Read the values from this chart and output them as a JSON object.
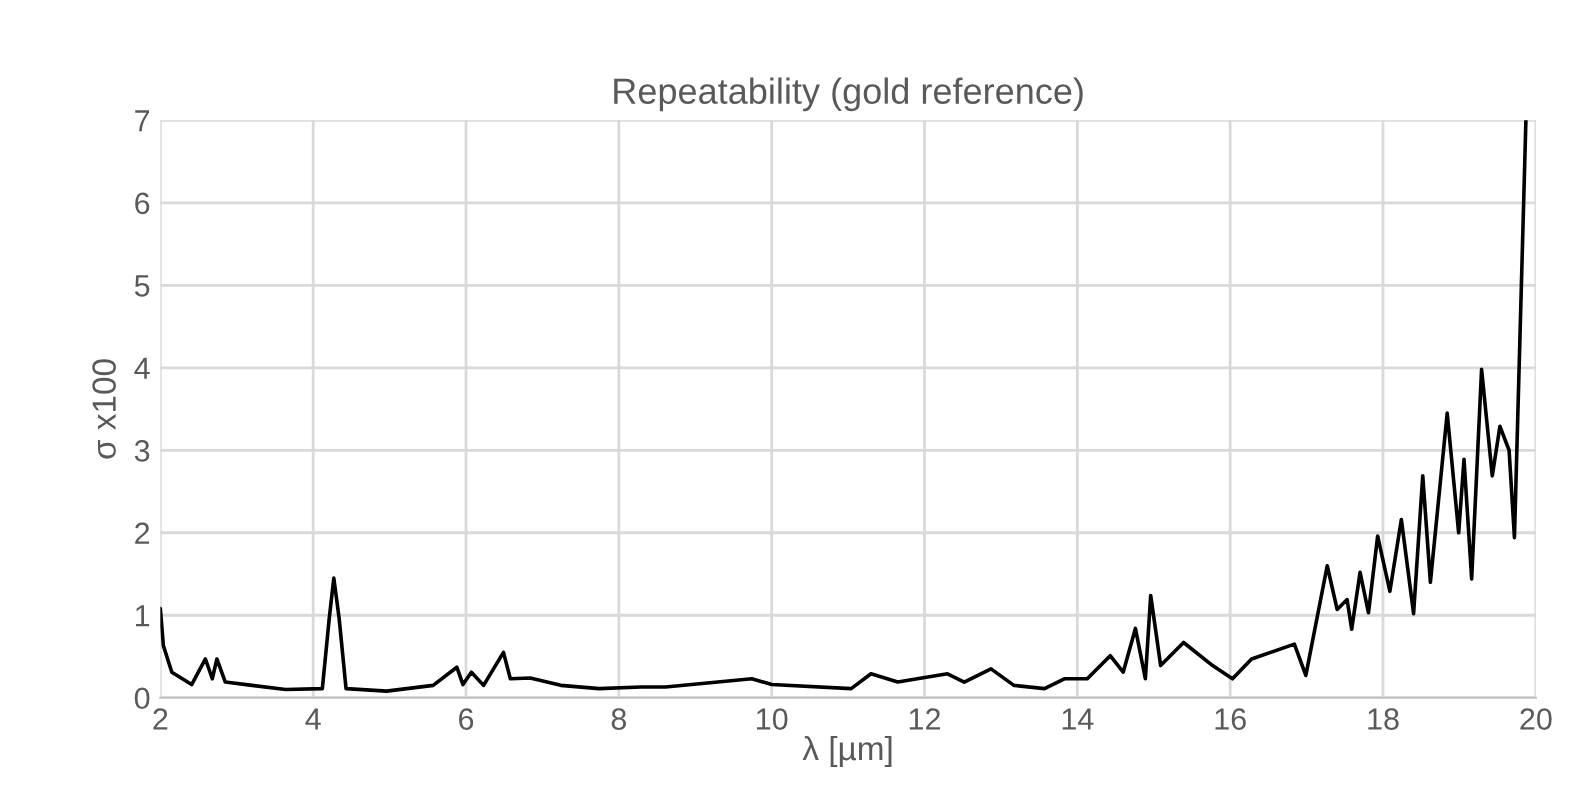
{
  "chart_data": {
    "type": "line",
    "title": "Repeatability (gold reference)",
    "xlabel": "λ [µm]",
    "ylabel": "σ x100",
    "x": [
      2,
      2.04,
      2.15,
      2.41,
      2.59,
      2.68,
      2.74,
      2.85,
      3.2,
      3.64,
      4.12,
      4.21,
      4.27,
      4.34,
      4.43,
      4.96,
      5.57,
      5.88,
      5.96,
      6.07,
      6.23,
      6.49,
      6.58,
      6.84,
      7.24,
      7.74,
      8.29,
      8.61,
      9.74,
      10.0,
      11.04,
      11.3,
      11.65,
      12.3,
      12.52,
      12.87,
      13.17,
      13.57,
      13.83,
      14.13,
      14.43,
      14.6,
      14.76,
      14.89,
      14.96,
      15.09,
      15.39,
      15.77,
      16.03,
      16.28,
      16.84,
      16.99,
      17.27,
      17.4,
      17.53,
      17.59,
      17.7,
      17.81,
      17.93,
      18.09,
      18.24,
      18.4,
      18.52,
      18.62,
      18.84,
      18.99,
      19.06,
      19.16,
      19.29,
      19.43,
      19.53,
      19.65,
      19.72,
      19.87
    ],
    "series": [
      {
        "color": "#000000",
        "values": [
          1.08,
          0.63,
          0.31,
          0.16,
          0.47,
          0.23,
          0.47,
          0.19,
          0.15,
          0.1,
          0.11,
          0.96,
          1.45,
          0.96,
          0.11,
          0.08,
          0.15,
          0.37,
          0.16,
          0.31,
          0.15,
          0.55,
          0.23,
          0.24,
          0.15,
          0.11,
          0.13,
          0.13,
          0.23,
          0.16,
          0.11,
          0.29,
          0.19,
          0.29,
          0.19,
          0.35,
          0.15,
          0.11,
          0.23,
          0.23,
          0.51,
          0.31,
          0.84,
          0.23,
          1.24,
          0.39,
          0.67,
          0.39,
          0.23,
          0.47,
          0.65,
          0.27,
          1.6,
          1.07,
          1.19,
          0.83,
          1.52,
          1.03,
          1.96,
          1.29,
          2.16,
          1.02,
          2.69,
          1.4,
          3.45,
          2.0,
          2.89,
          1.44,
          3.98,
          2.69,
          3.29,
          3.0,
          1.94,
          7.0
        ]
      }
    ],
    "xlim": [
      2,
      20
    ],
    "xticks": [
      2,
      4,
      6,
      8,
      10,
      12,
      14,
      16,
      18,
      20
    ],
    "ylim": [
      0,
      7
    ],
    "yticks": [
      0,
      1,
      2,
      3,
      4,
      5,
      6,
      7
    ],
    "grid": true,
    "line_style": "solid",
    "marker": "none"
  }
}
